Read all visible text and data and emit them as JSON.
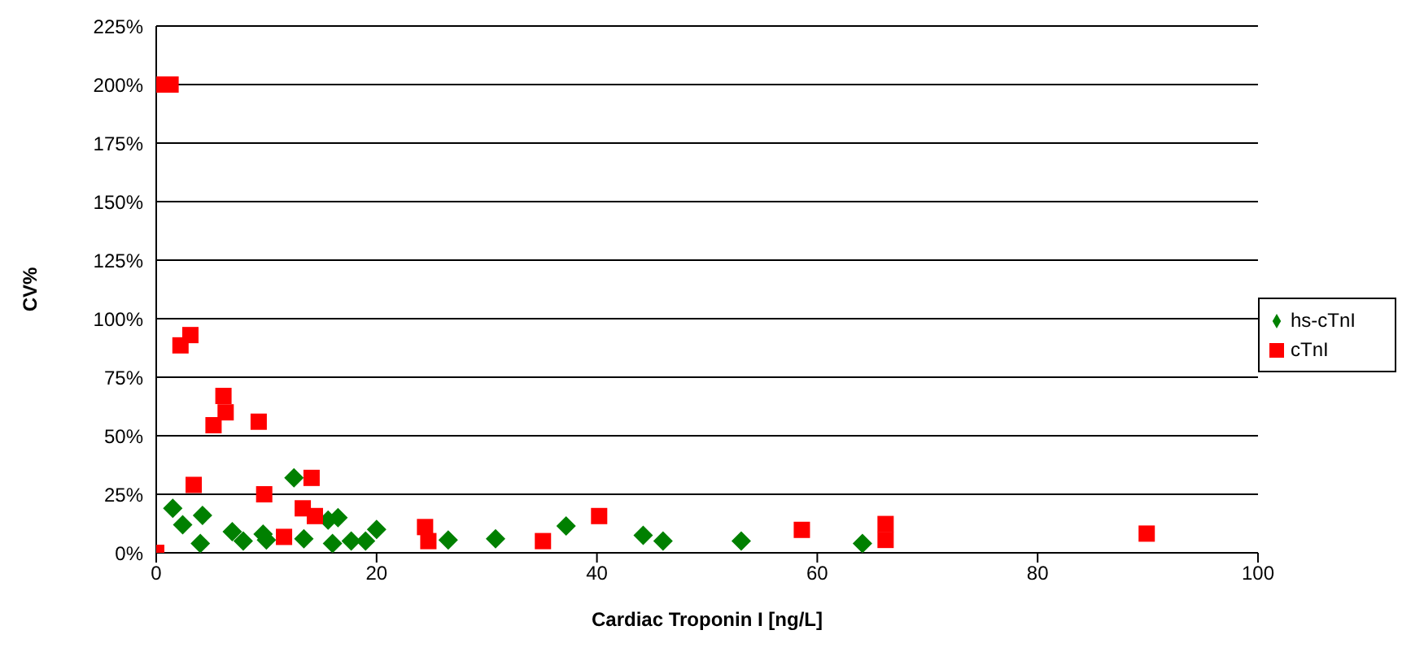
{
  "chart_data": {
    "type": "scatter",
    "xlabel": "Cardiac Troponin I [ng/L]",
    "ylabel": "CV%",
    "xlim": [
      0,
      100
    ],
    "xticks": [
      0,
      20,
      40,
      60,
      80,
      100
    ],
    "ylim": [
      0,
      225
    ],
    "yticks": [
      {
        "value": 0,
        "label": "0%"
      },
      {
        "value": 25,
        "label": "25%"
      },
      {
        "value": 50,
        "label": "50%"
      },
      {
        "value": 75,
        "label": "75%"
      },
      {
        "value": 100,
        "label": "100%"
      },
      {
        "value": 125,
        "label": "125%"
      },
      {
        "value": 150,
        "label": "150%"
      },
      {
        "value": 175,
        "label": "175%"
      },
      {
        "value": 200,
        "label": "200%"
      },
      {
        "value": 225,
        "label": "225%"
      }
    ],
    "grid": "y",
    "legend": "right",
    "series": [
      {
        "name": "hs-cTnI",
        "color": "#008000",
        "marker": "diamond",
        "x": [
          1.5,
          2.4,
          4.2,
          4.0,
          6.9,
          7.9,
          9.7,
          10,
          12.5,
          13.4,
          15.6,
          16.5,
          16,
          17.7,
          19,
          20,
          26.5,
          30.8,
          37.2,
          44.2,
          46,
          53.1,
          64.1
        ],
        "values": [
          19,
          12,
          16,
          4,
          9,
          5,
          8,
          5.5,
          32,
          6,
          14,
          15,
          4,
          5,
          5,
          10,
          5.5,
          6,
          11.5,
          7.5,
          5,
          5,
          4
        ]
      },
      {
        "name": "cTnI",
        "color": "#ff0000",
        "marker": "square",
        "x": [
          0,
          0,
          1.3,
          2.2,
          3.1,
          3.4,
          5.2,
          6.1,
          6.3,
          9.3,
          9.8,
          11.6,
          14.1,
          13.3,
          14.4,
          24.4,
          24.7,
          35.1,
          40.2,
          58.6,
          66.2,
          66.2,
          89.9
        ],
        "values": [
          0,
          200,
          200,
          88.6,
          93,
          29,
          54.5,
          67,
          60,
          56,
          25,
          6.8,
          32,
          19,
          15.7,
          11,
          5,
          5,
          15.7,
          9.8,
          12.3,
          5.5,
          8.2
        ]
      }
    ]
  }
}
